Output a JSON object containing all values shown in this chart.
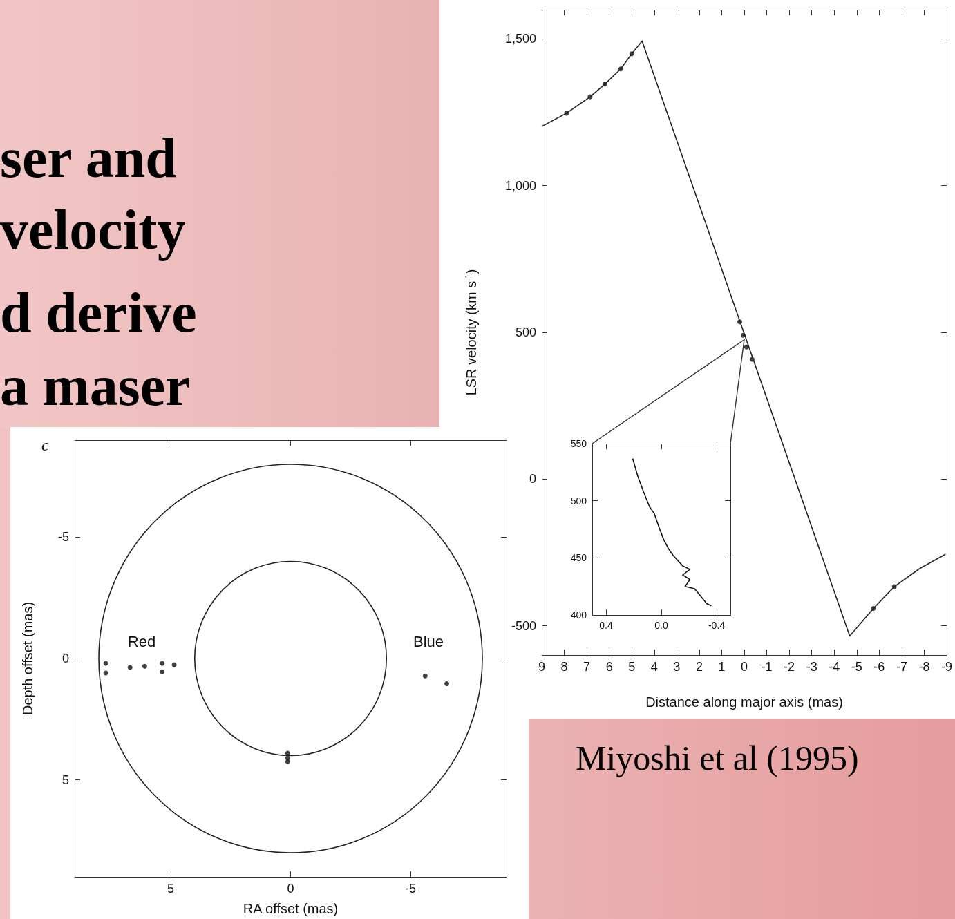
{
  "chart_data": [
    {
      "type": "line",
      "xlabel": "Distance along major axis (mas)",
      "ylabel": "LSR velocity (km s$^{-1}$)",
      "xlim": [
        9,
        -9
      ],
      "ylim": [
        -600,
        1600
      ],
      "xticks": [
        9,
        8,
        7,
        6,
        5,
        4,
        3,
        2,
        1,
        0,
        -1,
        -2,
        -3,
        -4,
        -5,
        -6,
        -7,
        -8,
        -9
      ],
      "yticks": [
        -500,
        0,
        500,
        {
          "value": 1000,
          "label": "1,000"
        },
        {
          "value": 1500,
          "label": "1,500"
        }
      ],
      "annotations": [
        "ser and",
        "velocity",
        "d derive",
        "a maser",
        "Miyoshi et al (1995)"
      ],
      "series": [
        {
          "color": "#222222",
          "x": [
            9,
            7.9,
            6.85,
            6.2,
            5.49,
            5.0,
            4.54,
            -4.69,
            -5.74,
            -6.67,
            -7.8,
            -8.95
          ],
          "values": [
            1202,
            1247,
            1303,
            1346,
            1398,
            1450,
            1493,
            -535,
            -441,
            -367,
            -305,
            -256
          ]
        },
        {
          "type": "scatter",
          "marker": "circle",
          "color": "#111111",
          "x": [
            7.9,
            6.85,
            6.2,
            5.49,
            5.0,
            -5.74,
            -6.67,
            0.2,
            0.05,
            -0.1,
            -0.35
          ],
          "values": [
            1247,
            1303,
            1346,
            1398,
            1450,
            -441,
            -367,
            536,
            490,
            450,
            408
          ]
        }
      ]
    },
    {
      "type": "line",
      "xlim": [
        0.5,
        -0.5
      ],
      "ylim": [
        400,
        550
      ],
      "xticks": [
        0.4,
        {
          "value": 0,
          "label": "0.0"
        },
        -0.4
      ],
      "yticks": [
        400,
        450,
        500,
        550
      ],
      "series": [
        {
          "color": "#111111",
          "x": [
            0.207,
            0.172,
            0.129,
            0.086,
            0.052,
            0.017,
            -0.017,
            -0.052,
            -0.086,
            -0.155,
            -0.207,
            -0.155,
            -0.207,
            -0.172,
            -0.241,
            -0.328,
            -0.362
          ],
          "values": [
            537,
            522,
            508,
            495,
            489,
            477,
            466,
            458,
            452,
            443,
            440,
            435,
            431,
            425,
            423,
            410,
            408
          ]
        }
      ]
    },
    {
      "type": "scatter",
      "xlabel": "RA offset (mas)",
      "ylabel": "Depth offset (mas)",
      "xlim": [
        9,
        -9
      ],
      "ylim": [
        9,
        -9
      ],
      "xticks": [
        5,
        0,
        -5
      ],
      "yticks": [
        -5,
        0,
        5
      ],
      "annotations": [
        "c",
        "Red",
        "Blue"
      ],
      "series": [
        {
          "marker": "circle",
          "color": "#111111",
          "x": [
            7.7,
            7.7,
            6.69,
            6.08,
            5.35,
            5.35,
            4.85,
            -5.61,
            -6.51,
            0.12,
            0.12,
            0.12
          ],
          "values": [
            0.2,
            0.6,
            0.37,
            0.32,
            0.2,
            0.55,
            0.26,
            0.72,
            1.04,
            3.9,
            4.1,
            4.25
          ]
        }
      ]
    }
  ]
}
